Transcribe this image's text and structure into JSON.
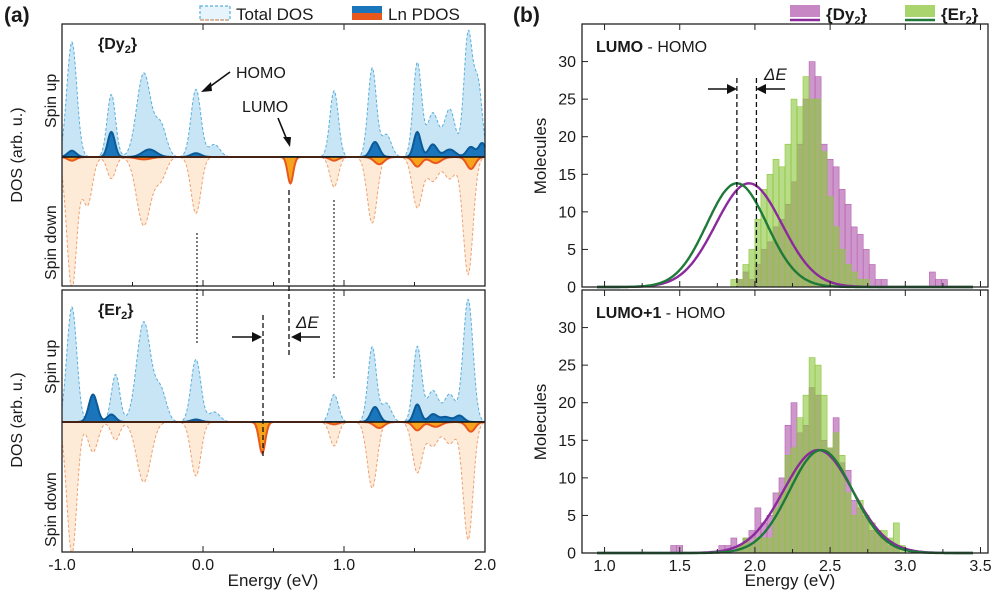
{
  "panel_labels": {
    "a": "(a)",
    "b": "(b)"
  },
  "legend_a": {
    "total": "Total DOS",
    "ln": "Ln PDOS"
  },
  "legend_b": {
    "dy": "{Dy",
    "er": "{Er",
    "sub": "2",
    "close": "}"
  },
  "colors": {
    "total_up_fill": "#c7e5f5",
    "total_up_line": "#5aaedc",
    "total_down_fill": "#fdebd7",
    "total_down_line": "#f0a070",
    "ln_up_fill": "#1a75bb",
    "ln_up_line": "#0b5a99",
    "ln_down_fill": "#f7a41d",
    "ln_down_line": "#e8581c",
    "dy_bar": "#b45fb0",
    "er_bar": "#8cc63e",
    "dy_curve": "#8a2a9c",
    "er_curve": "#1f7a3a"
  },
  "panel_a": {
    "top": {
      "compound": "{Dy",
      "sub": "2",
      "close": "}",
      "spin_up": "Spin up",
      "spin_down": "Spin down",
      "ylabel": "DOS (arb. u.)",
      "homo": "HOMO",
      "lumo": "LUMO"
    },
    "bottom": {
      "compound": "{Er",
      "sub": "2",
      "close": "}",
      "spin_up": "Spin up",
      "spin_down": "Spin down",
      "ylabel": "DOS (arb. u.)",
      "delta_e": "ΔE"
    },
    "xlabel": "Energy (eV)",
    "xticks": [
      "-1.0",
      "0.0",
      "1.0",
      "2.0"
    ]
  },
  "panel_b": {
    "top_title_bold": "LUMO",
    "top_title_rest": " - HOMO",
    "bottom_title_bold": "LUMO+1",
    "bottom_title_rest": " - HOMO",
    "ylabel": "Molecules",
    "xlabel": "Energy (eV)",
    "delta_e": "ΔE",
    "xticks": [
      "1.0",
      "1.5",
      "2.0",
      "2.5",
      "3.0",
      "3.5"
    ],
    "yticks": [
      "0",
      "5",
      "10",
      "15",
      "20",
      "25",
      "30"
    ]
  },
  "chart_data": [
    {
      "type": "area",
      "title": "{Dy2}",
      "xlabel": "Energy (eV)",
      "ylabel": "DOS (arb. u.)",
      "xlim": [
        -1.0,
        2.0
      ],
      "peaks": {
        "total_up": [
          [
            -0.93,
            0.92,
            0.035
          ],
          [
            -0.65,
            0.5,
            0.03
          ],
          [
            -0.42,
            0.67,
            0.05
          ],
          [
            -0.3,
            0.25,
            0.04
          ],
          [
            -0.05,
            0.54,
            0.035
          ],
          [
            0.08,
            0.1,
            0.04
          ],
          [
            0.93,
            0.53,
            0.03
          ],
          [
            1.2,
            0.71,
            0.03
          ],
          [
            1.3,
            0.18,
            0.035
          ],
          [
            1.52,
            0.75,
            0.03
          ],
          [
            1.63,
            0.35,
            0.04
          ],
          [
            1.75,
            0.38,
            0.04
          ],
          [
            1.88,
            0.97,
            0.03
          ],
          [
            1.95,
            0.58,
            0.03
          ]
        ],
        "ln_up": [
          [
            -0.93,
            0.05,
            0.03
          ],
          [
            -0.65,
            0.2,
            0.025
          ],
          [
            -0.38,
            0.06,
            0.05
          ],
          [
            -0.05,
            0.03,
            0.035
          ],
          [
            1.22,
            0.12,
            0.03
          ],
          [
            1.52,
            0.2,
            0.025
          ],
          [
            1.63,
            0.1,
            0.03
          ],
          [
            1.75,
            0.06,
            0.04
          ],
          [
            1.9,
            0.08,
            0.03
          ],
          [
            1.98,
            0.11,
            0.025
          ]
        ],
        "total_down": [
          [
            -0.93,
            1.1,
            0.035
          ],
          [
            -0.82,
            0.4,
            0.035
          ],
          [
            -0.65,
            0.18,
            0.03
          ],
          [
            -0.42,
            0.57,
            0.05
          ],
          [
            -0.3,
            0.18,
            0.04
          ],
          [
            -0.05,
            0.47,
            0.035
          ],
          [
            0.62,
            0.2,
            0.02
          ],
          [
            0.93,
            0.25,
            0.03
          ],
          [
            1.2,
            0.55,
            0.035
          ],
          [
            1.52,
            0.42,
            0.035
          ],
          [
            1.63,
            0.2,
            0.04
          ],
          [
            1.75,
            0.18,
            0.04
          ],
          [
            1.88,
            0.98,
            0.035
          ]
        ],
        "ln_down": [
          [
            -0.93,
            0.03,
            0.03
          ],
          [
            -0.42,
            0.02,
            0.05
          ],
          [
            0.62,
            0.22,
            0.02
          ],
          [
            0.93,
            0.03,
            0.03
          ],
          [
            1.25,
            0.06,
            0.035
          ],
          [
            1.52,
            0.08,
            0.03
          ],
          [
            1.65,
            0.05,
            0.04
          ],
          [
            1.9,
            0.1,
            0.03
          ]
        ]
      }
    },
    {
      "type": "area",
      "title": "{Er2}",
      "xlabel": "Energy (eV)",
      "ylabel": "DOS (arb. u.)",
      "xlim": [
        -1.0,
        2.0
      ],
      "peaks": {
        "total_up": [
          [
            -0.93,
            0.92,
            0.035
          ],
          [
            -0.62,
            0.38,
            0.03
          ],
          [
            -0.42,
            0.8,
            0.05
          ],
          [
            -0.3,
            0.25,
            0.04
          ],
          [
            -0.05,
            0.5,
            0.035
          ],
          [
            0.08,
            0.08,
            0.04
          ],
          [
            0.93,
            0.22,
            0.03
          ],
          [
            1.2,
            0.6,
            0.03
          ],
          [
            1.3,
            0.15,
            0.035
          ],
          [
            1.52,
            0.6,
            0.03
          ],
          [
            1.63,
            0.25,
            0.04
          ],
          [
            1.75,
            0.22,
            0.04
          ],
          [
            1.88,
            0.98,
            0.035
          ]
        ],
        "ln_up": [
          [
            -0.78,
            0.22,
            0.03
          ],
          [
            -0.65,
            0.06,
            0.03
          ],
          [
            -0.05,
            0.02,
            0.035
          ],
          [
            1.22,
            0.12,
            0.03
          ],
          [
            1.52,
            0.14,
            0.025
          ],
          [
            1.63,
            0.06,
            0.03
          ],
          [
            1.72,
            0.04,
            0.04
          ],
          [
            1.82,
            0.05,
            0.03
          ]
        ],
        "total_down": [
          [
            -0.93,
            1.1,
            0.035
          ],
          [
            -0.78,
            0.25,
            0.035
          ],
          [
            -0.62,
            0.15,
            0.03
          ],
          [
            -0.42,
            0.5,
            0.05
          ],
          [
            -0.05,
            0.45,
            0.035
          ],
          [
            0.42,
            0.25,
            0.025
          ],
          [
            0.93,
            0.2,
            0.03
          ],
          [
            1.2,
            0.55,
            0.035
          ],
          [
            1.52,
            0.42,
            0.035
          ],
          [
            1.63,
            0.2,
            0.04
          ],
          [
            1.75,
            0.18,
            0.04
          ],
          [
            1.88,
            0.98,
            0.035
          ]
        ],
        "ln_down": [
          [
            0.42,
            0.26,
            0.022
          ],
          [
            0.93,
            0.02,
            0.03
          ],
          [
            1.25,
            0.05,
            0.035
          ],
          [
            1.52,
            0.07,
            0.03
          ],
          [
            1.65,
            0.04,
            0.04
          ],
          [
            1.9,
            0.08,
            0.03
          ]
        ]
      }
    },
    {
      "type": "bar",
      "title": "LUMO - HOMO",
      "xlabel": "Energy (eV)",
      "ylabel": "Molecules",
      "xlim": [
        0.85,
        3.55
      ],
      "ylim": [
        0,
        35
      ],
      "bin_start": 1.6,
      "bin_width": 0.04,
      "series": [
        {
          "name": "{Dy2}",
          "values": [
            0,
            0,
            0,
            0,
            0,
            0,
            0,
            1,
            2,
            1,
            3,
            5,
            6,
            8,
            9,
            11,
            14,
            19,
            25,
            30,
            28,
            19,
            17,
            16,
            13,
            11,
            8,
            7,
            5,
            3,
            1,
            1,
            0,
            0,
            0,
            0,
            0,
            0,
            0,
            2,
            1,
            1
          ]
        },
        {
          "name": "{Er2}",
          "values": [
            0,
            0,
            0,
            0,
            0,
            0,
            1,
            1,
            3,
            5,
            9,
            13,
            15,
            17,
            16,
            19,
            25,
            24,
            28,
            25,
            25,
            18,
            12,
            8,
            5,
            3,
            2,
            1,
            1,
            0
          ]
        }
      ],
      "fit_curves": [
        {
          "name": "{Dy2}",
          "mean": 1.96,
          "sigma": 0.22,
          "peak": 13.8
        },
        {
          "name": "{Er2}",
          "mean": 1.88,
          "sigma": 0.2,
          "peak": 13.8
        }
      ],
      "mean_lines": [
        1.88,
        2.01
      ]
    },
    {
      "type": "bar",
      "title": "LUMO+1 - HOMO",
      "xlabel": "Energy (eV)",
      "ylabel": "Molecules",
      "xlim": [
        0.85,
        3.55
      ],
      "ylim": [
        0,
        35
      ],
      "bin_start": 1.44,
      "bin_width": 0.04,
      "series": [
        {
          "name": "{Dy2}",
          "values": [
            1,
            1,
            0,
            0,
            0,
            0,
            0,
            0,
            1,
            1,
            2,
            1,
            2,
            3,
            6,
            4,
            5,
            8,
            10,
            17,
            20,
            16,
            17,
            22,
            21,
            15,
            14,
            18,
            12,
            11,
            7,
            6,
            5,
            3,
            3,
            2,
            1,
            1,
            0,
            0,
            0
          ]
        },
        {
          "name": "{Er2}",
          "values": [
            0,
            0,
            0,
            0,
            0,
            0,
            0,
            0,
            0,
            0,
            0,
            1,
            2,
            1,
            2,
            2,
            2,
            6,
            8,
            13,
            14,
            18,
            21,
            26,
            25,
            21,
            14,
            16,
            13,
            8,
            5,
            7,
            5,
            4,
            3,
            3,
            2,
            4,
            1,
            0,
            0
          ]
        }
      ],
      "fit_curves": [
        {
          "name": "{Dy2}",
          "mean": 2.42,
          "sigma": 0.23,
          "peak": 13.7
        },
        {
          "name": "{Er2}",
          "mean": 2.44,
          "sigma": 0.21,
          "peak": 13.7
        }
      ]
    }
  ]
}
